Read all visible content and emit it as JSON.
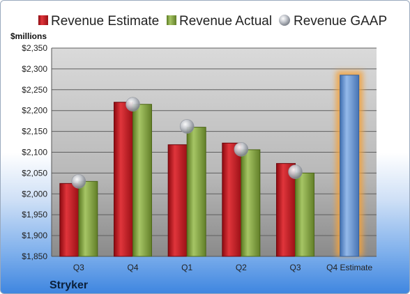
{
  "chart_data": {
    "type": "bar",
    "ylabel": "$millions",
    "ylim": [
      1850,
      2350
    ],
    "ytick_step": 50,
    "y_tick_prefix": "$",
    "categories": [
      "Q3",
      "Q4",
      "Q1",
      "Q2",
      "Q3",
      "Q4 Estimate"
    ],
    "series": [
      {
        "name": "Revenue Estimate",
        "color": "#c8141c",
        "values": [
          2025,
          2220,
          2118,
          2122,
          2073,
          2285
        ]
      },
      {
        "name": "Revenue Actual",
        "color": "#7fa33a",
        "values": [
          2030,
          2215,
          2160,
          2106,
          2050,
          null
        ]
      },
      {
        "name": "Revenue GAAP",
        "color": "#b4b8c0",
        "marker": "sphere",
        "values": [
          2030,
          2215,
          2162,
          2107,
          2053,
          null
        ]
      }
    ],
    "highlight": {
      "category_index": 5,
      "bar_color": "#6d9bd8",
      "glow_color": "#f2a23c"
    },
    "legend_position": "top",
    "grid": true,
    "company": "Stryker"
  }
}
